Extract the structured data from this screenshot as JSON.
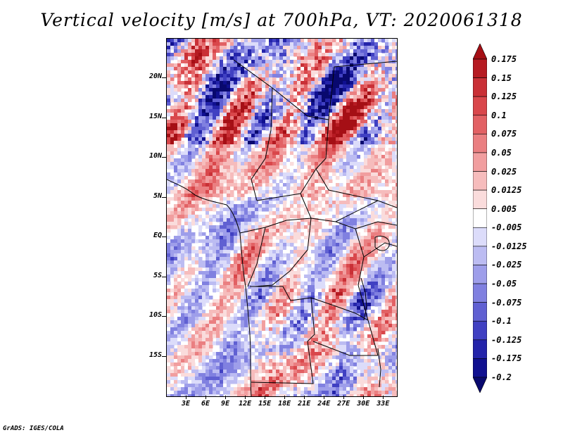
{
  "title": "Vertical velocity [m/s] at 700hPa, VT: 2020061318",
  "footer": "GrADS: IGES/COLA",
  "map": {
    "lat_ticks": [
      "20N",
      "15N",
      "10N",
      "5N",
      "EQ",
      "5S",
      "10S",
      "15S"
    ],
    "lon_ticks": [
      "3E",
      "6E",
      "9E",
      "12E",
      "15E",
      "18E",
      "21E",
      "24E",
      "27E",
      "30E",
      "33E"
    ],
    "lat_range": [
      -20,
      25
    ],
    "lon_range": [
      0,
      35
    ],
    "variable": "vertical velocity",
    "level": "700hPa",
    "valid_time": "2020061318"
  },
  "colorbar": {
    "labels": [
      "0.175",
      "0.15",
      "0.125",
      "0.1",
      "0.075",
      "0.05",
      "0.025",
      "0.0125",
      "0.005",
      "-0.005",
      "-0.0125",
      "-0.025",
      "-0.05",
      "-0.075",
      "-0.1",
      "-0.125",
      "-0.175",
      "-0.2"
    ],
    "colors": [
      "#a50f15",
      "#b61b22",
      "#c93036",
      "#d9474b",
      "#e26164",
      "#ea7f81",
      "#f19e9f",
      "#f6bcbc",
      "#fadcdc",
      "#ffffff",
      "#dcdcfa",
      "#bcbcf2",
      "#9e9eea",
      "#8080e0",
      "#6060d2",
      "#4040c2",
      "#2424aa",
      "#101090",
      "#08086e"
    ]
  }
}
